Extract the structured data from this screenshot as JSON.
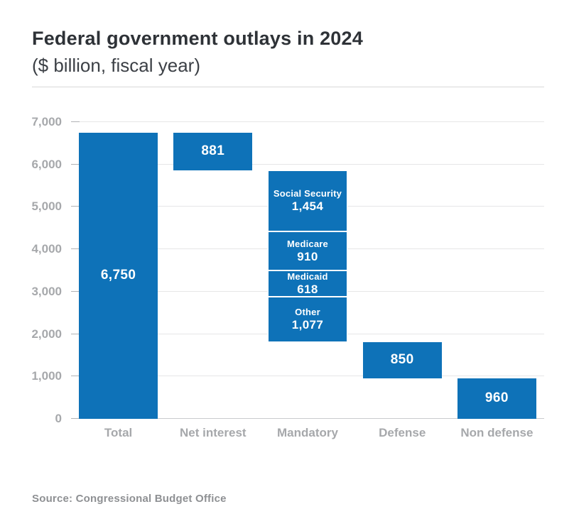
{
  "chart_data": {
    "type": "bar",
    "subtype": "waterfall",
    "title": "Federal government outlays in 2024",
    "subtitle": "($ billion, fiscal year)",
    "source": "Source: Congressional Budget Office",
    "ylim": [
      0,
      7000
    ],
    "grid": true,
    "legend": "none",
    "yticks": [
      {
        "value": 7000,
        "label": "7,000"
      },
      {
        "value": 6000,
        "label": "6,000"
      },
      {
        "value": 5000,
        "label": "5,000"
      },
      {
        "value": 4000,
        "label": "4,000"
      },
      {
        "value": 3000,
        "label": "3,000"
      },
      {
        "value": 2000,
        "label": "2,000"
      },
      {
        "value": 1000,
        "label": "1,000"
      },
      {
        "value": 0,
        "label": "0"
      }
    ],
    "categories": [
      "Total",
      "Net interest",
      "Mandatory",
      "Defense",
      "Non defense"
    ],
    "bars": [
      {
        "category": "Total",
        "start": 0,
        "end": 6750,
        "value": 6750,
        "label": "6,750"
      },
      {
        "category": "Net interest",
        "start": 5869,
        "end": 6750,
        "value": 881,
        "label": "881"
      },
      {
        "category": "Mandatory",
        "start": 1810,
        "end": 5869,
        "value": 4059,
        "segments": [
          {
            "name": "Social Security",
            "value": 1454,
            "label": "1,454"
          },
          {
            "name": "Medicare",
            "value": 910,
            "label": "910"
          },
          {
            "name": "Medicaid",
            "value": 618,
            "label": "618"
          },
          {
            "name": "Other",
            "value": 1077,
            "label": "1,077"
          }
        ]
      },
      {
        "category": "Defense",
        "start": 960,
        "end": 1810,
        "value": 850,
        "label": "850"
      },
      {
        "category": "Non defense",
        "start": 0,
        "end": 960,
        "value": 960,
        "label": "960"
      }
    ],
    "colors": {
      "bar": "#0e72b8",
      "bar_label": "#ffffff",
      "axis_label": "#a6a8ab",
      "gridline": "#e6e6e7",
      "zero_line": "#c9cbcd",
      "title": "#2e3237",
      "subtitle": "#3c4046",
      "source": "#8e9093"
    }
  }
}
